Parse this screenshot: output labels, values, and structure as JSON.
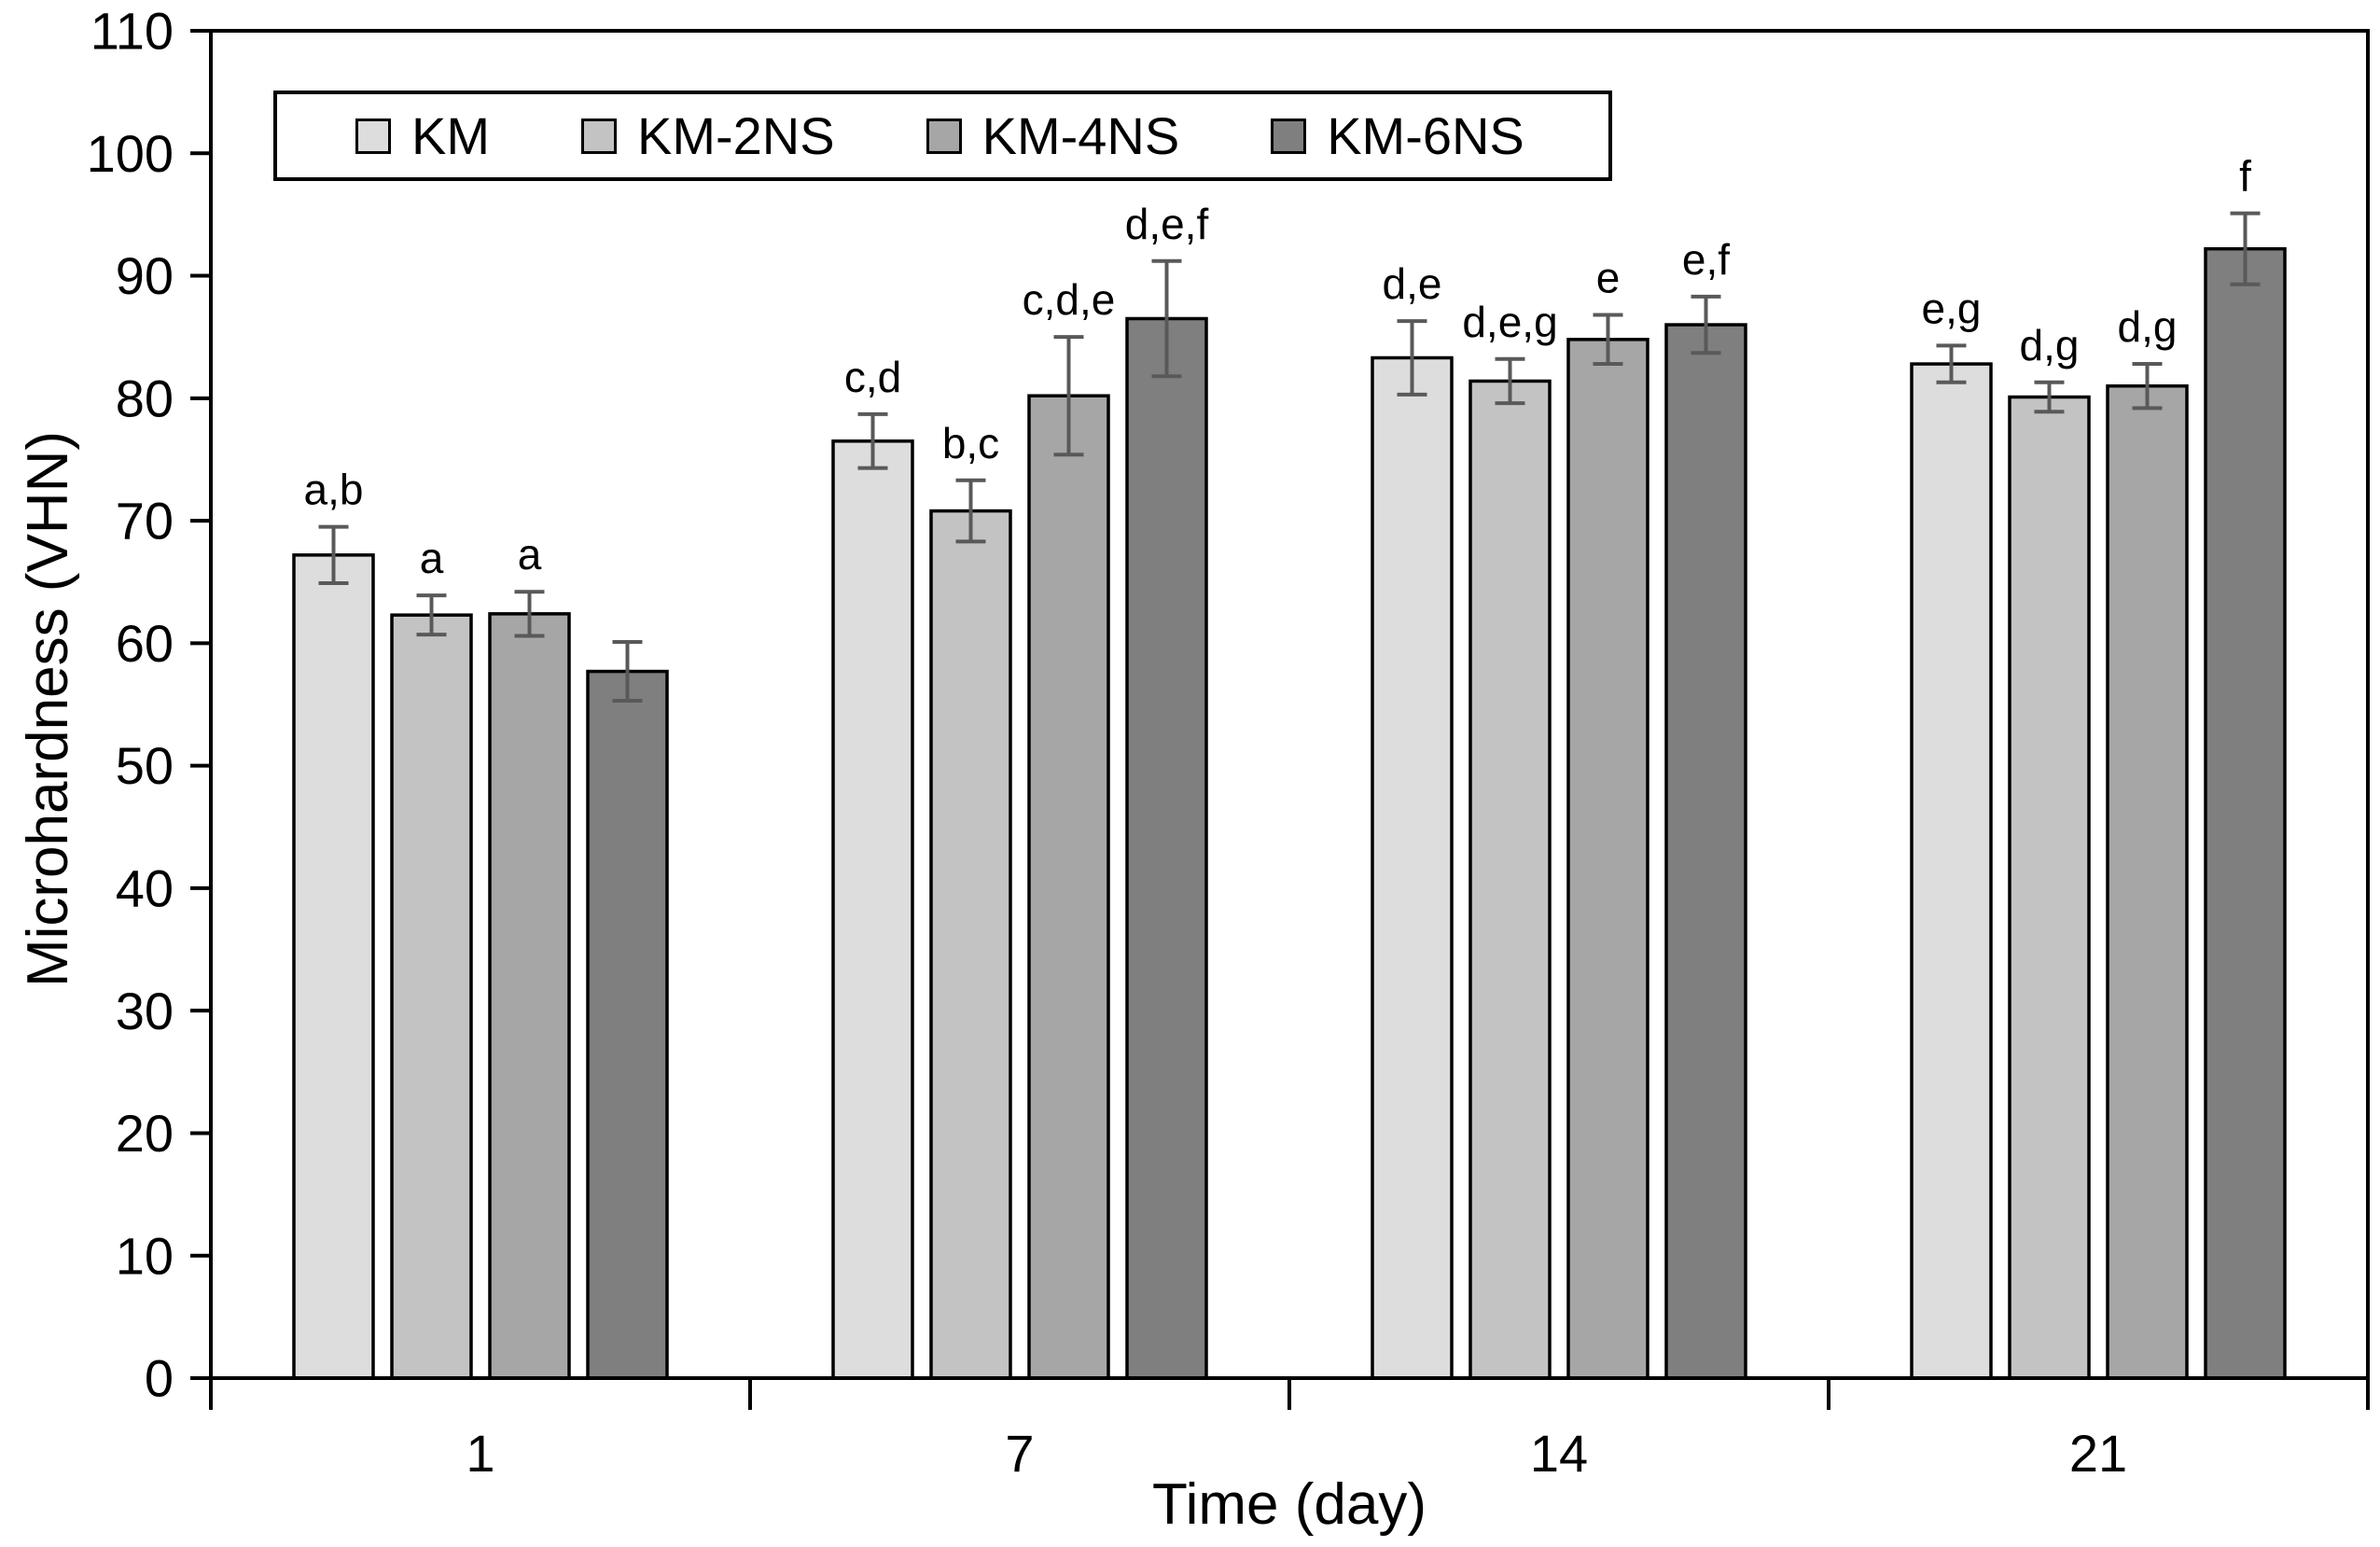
{
  "figure": {
    "background": "#ffffff",
    "axis_color": "#000000",
    "error_bar_color": "#595959"
  },
  "chart_data": {
    "type": "bar",
    "title": "",
    "xlabel": "Time (day)",
    "ylabel": "Microhardness (VHN)",
    "categories": [
      "1",
      "7",
      "14",
      "21"
    ],
    "ylim": [
      0,
      110
    ],
    "ytick_step": 10,
    "yticks": [
      0,
      10,
      20,
      30,
      40,
      50,
      60,
      70,
      80,
      90,
      100,
      110
    ],
    "grid": false,
    "legend_position": "top-inside",
    "legend_entries": [
      "KM",
      "KM-2NS",
      "KM-4NS",
      "KM-6NS"
    ],
    "series": [
      {
        "name": "KM",
        "color": "#dddddd",
        "values": [
          67.2,
          76.5,
          83.3,
          82.8
        ],
        "errors": [
          2.3,
          2.2,
          3.0,
          1.5
        ],
        "sig_labels": [
          "a,b",
          "c,d",
          "d,e",
          "e,g"
        ]
      },
      {
        "name": "KM-2NS",
        "color": "#c3c3c3",
        "values": [
          62.3,
          70.8,
          81.4,
          80.1
        ],
        "errors": [
          1.6,
          2.5,
          1.8,
          1.2
        ],
        "sig_labels": [
          "a",
          "b,c",
          "d,e,g",
          "d,g"
        ]
      },
      {
        "name": "KM-4NS",
        "color": "#a6a6a6",
        "values": [
          62.4,
          80.2,
          84.8,
          81.0
        ],
        "errors": [
          1.8,
          4.8,
          2.0,
          1.8
        ],
        "sig_labels": [
          "a",
          "c,d,e",
          "e",
          "d,g"
        ]
      },
      {
        "name": "KM-6NS",
        "color": "#7f7f7f",
        "values": [
          57.7,
          86.5,
          86.0,
          92.2
        ],
        "errors": [
          2.4,
          4.7,
          2.3,
          2.9
        ],
        "sig_labels": [
          "",
          "d,e,f",
          "e,f",
          "f"
        ]
      }
    ]
  }
}
